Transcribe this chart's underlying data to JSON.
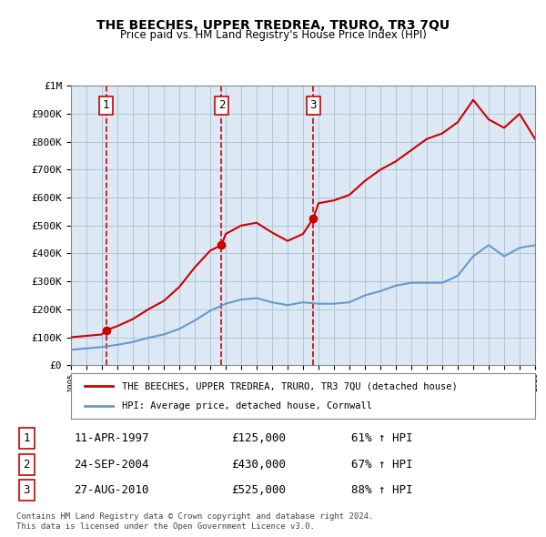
{
  "title": "THE BEECHES, UPPER TREDREA, TRURO, TR3 7QU",
  "subtitle": "Price paid vs. HM Land Registry's House Price Index (HPI)",
  "background_color": "#dce9f5",
  "plot_bg_color": "#dce9f5",
  "sale_label": "THE BEECHES, UPPER TREDREA, TRURO, TR3 7QU (detached house)",
  "hpi_label": "HPI: Average price, detached house, Cornwall",
  "footer": "Contains HM Land Registry data © Crown copyright and database right 2024.\nThis data is licensed under the Open Government Licence v3.0.",
  "transactions": [
    {
      "num": 1,
      "date": "11-APR-1997",
      "price": 125000,
      "pct": "61%",
      "dir": "↑"
    },
    {
      "num": 2,
      "date": "24-SEP-2004",
      "price": 430000,
      "pct": "67%",
      "dir": "↑"
    },
    {
      "num": 3,
      "date": "27-AUG-2010",
      "price": 525000,
      "pct": "88%",
      "dir": "↑"
    }
  ],
  "sale_years": [
    1997.28,
    2004.73,
    2010.65
  ],
  "sale_prices": [
    125000,
    430000,
    525000
  ],
  "hpi_years": [
    1995,
    1996,
    1997,
    1998,
    1999,
    2000,
    2001,
    2002,
    2003,
    2004,
    2005,
    2006,
    2007,
    2008,
    2009,
    2010,
    2011,
    2012,
    2013,
    2014,
    2015,
    2016,
    2017,
    2018,
    2019,
    2020,
    2021,
    2022,
    2023,
    2024,
    2025
  ],
  "hpi_values": [
    55000,
    60000,
    65000,
    73000,
    83000,
    98000,
    110000,
    130000,
    160000,
    195000,
    220000,
    235000,
    240000,
    225000,
    215000,
    225000,
    220000,
    220000,
    225000,
    250000,
    265000,
    285000,
    295000,
    295000,
    295000,
    320000,
    390000,
    430000,
    390000,
    420000,
    430000
  ],
  "red_line_years": [
    1995,
    1996,
    1997,
    1997.28,
    1998,
    1999,
    2000,
    2001,
    2002,
    2003,
    2004,
    2004.73,
    2005,
    2006,
    2007,
    2008,
    2009,
    2010,
    2010.65,
    2011,
    2012,
    2013,
    2014,
    2015,
    2016,
    2017,
    2018,
    2019,
    2020,
    2021,
    2022,
    2023,
    2024,
    2025
  ],
  "red_line_values": [
    100000,
    105000,
    110000,
    125000,
    140000,
    165000,
    200000,
    230000,
    280000,
    350000,
    410000,
    430000,
    470000,
    500000,
    510000,
    475000,
    445000,
    470000,
    525000,
    580000,
    590000,
    610000,
    660000,
    700000,
    730000,
    770000,
    810000,
    830000,
    870000,
    950000,
    880000,
    850000,
    900000,
    810000
  ],
  "ylim": [
    0,
    1000000
  ],
  "xlim": [
    1995,
    2025
  ],
  "sale_color": "#cc0000",
  "hpi_color": "#6699cc",
  "vline_color": "#cc0000",
  "grid_color": "#b0c4d8",
  "marker_color": "#cc0000"
}
